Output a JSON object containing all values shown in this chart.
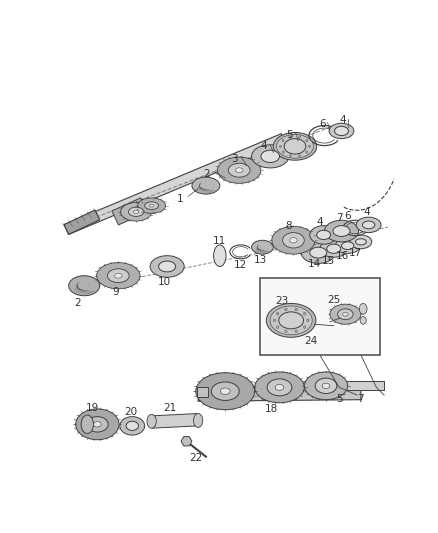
{
  "bg_color": "#ffffff",
  "line_color": "#404040",
  "label_color": "#333333",
  "shaft_color": "#c8c8c8",
  "gear_color": "#b0b0b0",
  "bearing_color": "#a8a8a8"
}
